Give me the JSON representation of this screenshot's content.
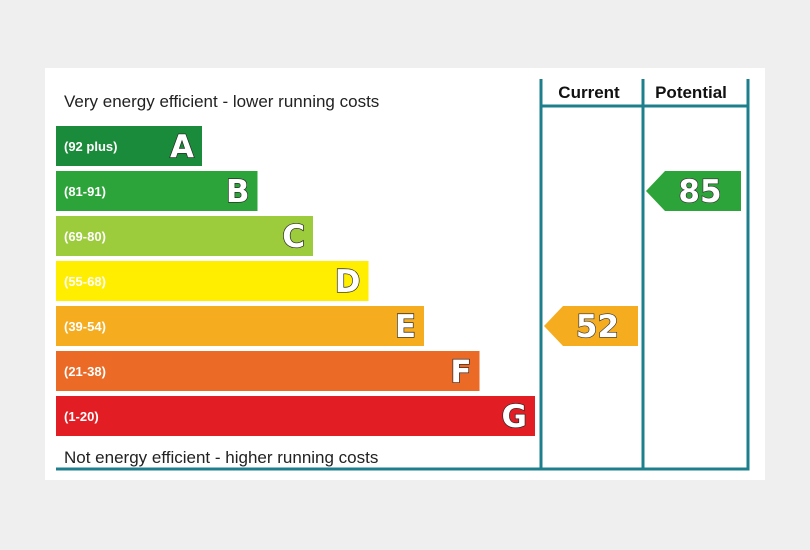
{
  "chart_data": {
    "type": "bar",
    "title": "",
    "top_caption": "Very energy efficient - lower running costs",
    "bottom_caption": "Not energy efficient - higher running costs",
    "columns": [
      "Current",
      "Potential"
    ],
    "bands": [
      {
        "letter": "A",
        "range": "(92 plus)",
        "color": "#1a8b3b"
      },
      {
        "letter": "B",
        "range": "(81-91)",
        "color": "#2da43a"
      },
      {
        "letter": "C",
        "range": "(69-80)",
        "color": "#9ccb3b"
      },
      {
        "letter": "D",
        "range": "(55-68)",
        "color": "#ffee00"
      },
      {
        "letter": "E",
        "range": "(39-54)",
        "color": "#f5ac1f"
      },
      {
        "letter": "F",
        "range": "(21-38)",
        "color": "#ea6a26"
      },
      {
        "letter": "G",
        "range": "(1-20)",
        "color": "#e31d24"
      }
    ],
    "current": {
      "value": 52,
      "band": "E",
      "color": "#f5ac1f"
    },
    "potential": {
      "value": 85,
      "band": "B",
      "color": "#2da43a"
    },
    "frame_color": "#1e7f8c"
  }
}
